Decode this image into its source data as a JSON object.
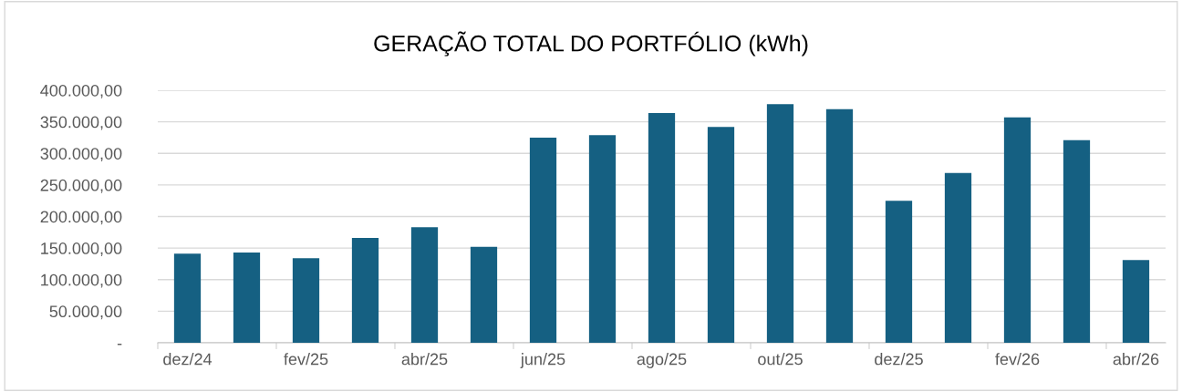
{
  "chart_data": {
    "type": "bar",
    "title": "GERAÇÃO TOTAL DO PORTFÓLIO (kWh)",
    "categories": [
      "dez/24",
      null,
      "fev/25",
      null,
      "abr/25",
      null,
      "jun/25",
      null,
      "ago/25",
      null,
      "out/25",
      null,
      "dez/25",
      null,
      "fev/26",
      null,
      "abr/26"
    ],
    "values": [
      141000,
      143000,
      134000,
      166000,
      183000,
      152000,
      325000,
      329000,
      364000,
      342000,
      378000,
      370000,
      225000,
      269000,
      357000,
      321000,
      131000
    ],
    "color": "#156082",
    "ylim": [
      0,
      400000
    ],
    "yticks": [
      {
        "value": 0,
        "label": "-"
      },
      {
        "value": 50000,
        "label": "50.000,00"
      },
      {
        "value": 100000,
        "label": "100.000,00"
      },
      {
        "value": 150000,
        "label": "150.000,00"
      },
      {
        "value": 200000,
        "label": "200.000,00"
      },
      {
        "value": 250000,
        "label": "250.000,00"
      },
      {
        "value": 300000,
        "label": "300.000,00"
      },
      {
        "value": 350000,
        "label": "350.000,00"
      },
      {
        "value": 400000,
        "label": "400.000,00"
      }
    ],
    "grid": "y"
  }
}
